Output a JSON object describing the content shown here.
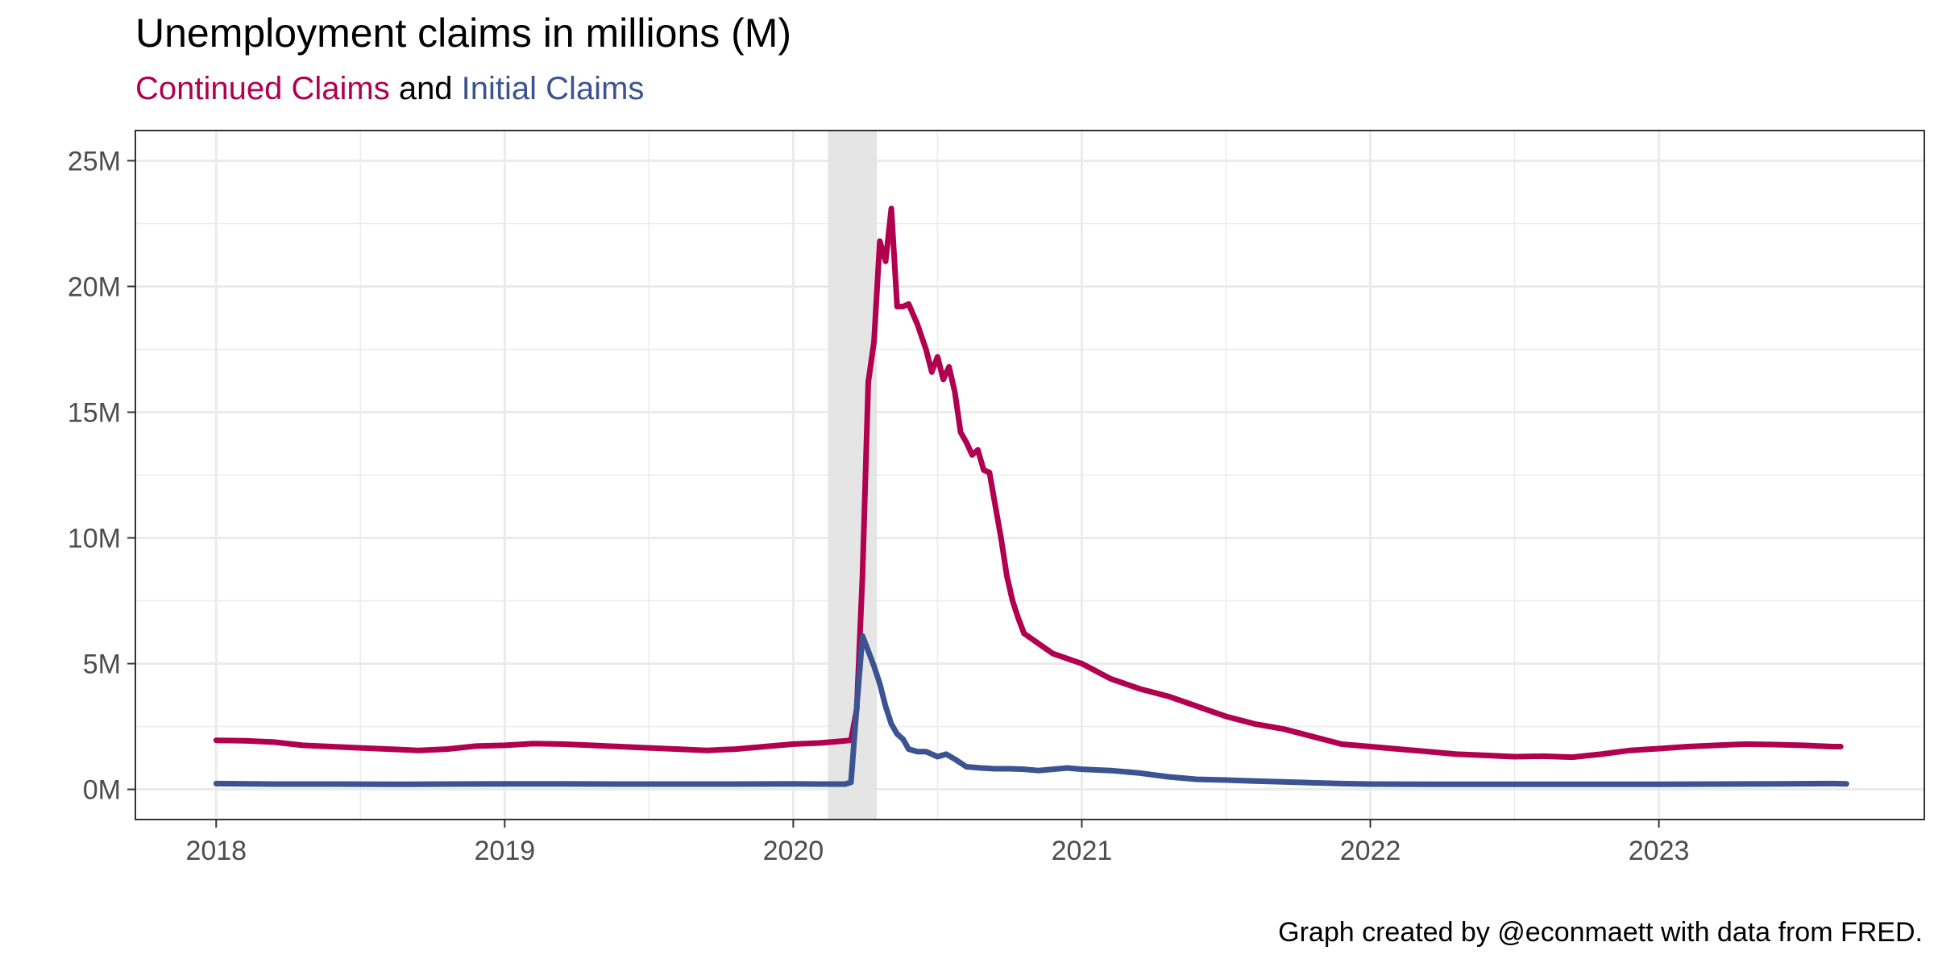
{
  "title": "Unemployment claims in millions (M)",
  "subtitle": {
    "series_a": "Continued Claims",
    "connector": " and ",
    "series_b": "Initial Claims"
  },
  "caption": "Graph created by @econmaett with data from FRED.",
  "colors": {
    "continued": "#b0004f",
    "initial": "#3c5391",
    "recession": "#e5e5e5",
    "grid": "#ebebeb",
    "axis": "#333333",
    "tick_text": "#4d4d4d"
  },
  "chart_data": {
    "type": "line",
    "title": "Unemployment claims in millions (M)",
    "xlabel": "",
    "ylabel": "",
    "xlim": [
      2017.72,
      2023.92
    ],
    "ylim": [
      -1.2,
      26.2
    ],
    "x_ticks": [
      2018,
      2019,
      2020,
      2021,
      2022,
      2023
    ],
    "x_tick_labels": [
      "2018",
      "2019",
      "2020",
      "2021",
      "2022",
      "2023"
    ],
    "y_ticks": [
      0,
      5,
      10,
      15,
      20,
      25
    ],
    "y_tick_labels": [
      "0M",
      "5M",
      "10M",
      "15M",
      "20M",
      "25M"
    ],
    "grid": true,
    "legend": "subtitle",
    "recession_band": [
      2020.12,
      2020.29
    ],
    "series": [
      {
        "name": "Continued Claims",
        "x": [
          2018.0,
          2018.1,
          2018.2,
          2018.3,
          2018.4,
          2018.5,
          2018.6,
          2018.7,
          2018.8,
          2018.9,
          2019.0,
          2019.1,
          2019.2,
          2019.3,
          2019.4,
          2019.5,
          2019.6,
          2019.7,
          2019.8,
          2019.9,
          2020.0,
          2020.1,
          2020.15,
          2020.2,
          2020.22,
          2020.24,
          2020.26,
          2020.28,
          2020.3,
          2020.32,
          2020.34,
          2020.36,
          2020.38,
          2020.4,
          2020.43,
          2020.46,
          2020.48,
          2020.5,
          2020.52,
          2020.54,
          2020.56,
          2020.58,
          2020.6,
          2020.62,
          2020.64,
          2020.66,
          2020.68,
          2020.7,
          2020.72,
          2020.74,
          2020.76,
          2020.78,
          2020.8,
          2020.85,
          2020.9,
          2020.95,
          2021.0,
          2021.1,
          2021.2,
          2021.3,
          2021.4,
          2021.5,
          2021.6,
          2021.7,
          2021.8,
          2021.9,
          2022.0,
          2022.1,
          2022.2,
          2022.3,
          2022.4,
          2022.5,
          2022.6,
          2022.7,
          2022.8,
          2022.9,
          2023.0,
          2023.1,
          2023.2,
          2023.3,
          2023.4,
          2023.5,
          2023.6,
          2023.63
        ],
        "values": [
          1.95,
          1.93,
          1.88,
          1.75,
          1.7,
          1.65,
          1.6,
          1.55,
          1.6,
          1.72,
          1.75,
          1.82,
          1.8,
          1.75,
          1.7,
          1.65,
          1.6,
          1.55,
          1.6,
          1.7,
          1.8,
          1.85,
          1.9,
          1.95,
          3.2,
          8.5,
          16.2,
          17.8,
          21.8,
          21.0,
          23.1,
          19.2,
          19.2,
          19.3,
          18.5,
          17.5,
          16.6,
          17.2,
          16.3,
          16.8,
          15.8,
          14.2,
          13.8,
          13.3,
          13.5,
          12.7,
          12.6,
          11.3,
          10.0,
          8.5,
          7.5,
          6.8,
          6.2,
          5.8,
          5.4,
          5.2,
          5.0,
          4.4,
          4.0,
          3.7,
          3.3,
          2.9,
          2.6,
          2.4,
          2.1,
          1.8,
          1.7,
          1.6,
          1.5,
          1.4,
          1.35,
          1.3,
          1.32,
          1.28,
          1.4,
          1.55,
          1.62,
          1.7,
          1.75,
          1.8,
          1.78,
          1.75,
          1.7,
          1.7
        ]
      },
      {
        "name": "Initial Claims",
        "x": [
          2018.0,
          2018.2,
          2018.4,
          2018.6,
          2018.8,
          2019.0,
          2019.2,
          2019.4,
          2019.6,
          2019.8,
          2020.0,
          2020.1,
          2020.18,
          2020.2,
          2020.22,
          2020.24,
          2020.26,
          2020.28,
          2020.3,
          2020.32,
          2020.34,
          2020.36,
          2020.38,
          2020.4,
          2020.43,
          2020.46,
          2020.5,
          2020.53,
          2020.56,
          2020.6,
          2020.65,
          2020.7,
          2020.75,
          2020.8,
          2020.85,
          2020.9,
          2020.95,
          2021.0,
          2021.1,
          2021.2,
          2021.3,
          2021.4,
          2021.5,
          2021.6,
          2021.7,
          2021.8,
          2021.9,
          2022.0,
          2022.2,
          2022.4,
          2022.6,
          2022.8,
          2023.0,
          2023.2,
          2023.4,
          2023.6,
          2023.65
        ],
        "values": [
          0.23,
          0.21,
          0.21,
          0.2,
          0.21,
          0.22,
          0.22,
          0.21,
          0.21,
          0.21,
          0.22,
          0.21,
          0.21,
          0.28,
          3.3,
          6.1,
          5.5,
          4.9,
          4.2,
          3.3,
          2.6,
          2.2,
          2.0,
          1.6,
          1.5,
          1.5,
          1.3,
          1.4,
          1.2,
          0.9,
          0.85,
          0.82,
          0.82,
          0.8,
          0.75,
          0.8,
          0.85,
          0.8,
          0.75,
          0.65,
          0.5,
          0.4,
          0.37,
          0.33,
          0.3,
          0.26,
          0.23,
          0.21,
          0.2,
          0.2,
          0.2,
          0.2,
          0.2,
          0.21,
          0.22,
          0.23,
          0.22
        ]
      }
    ]
  }
}
